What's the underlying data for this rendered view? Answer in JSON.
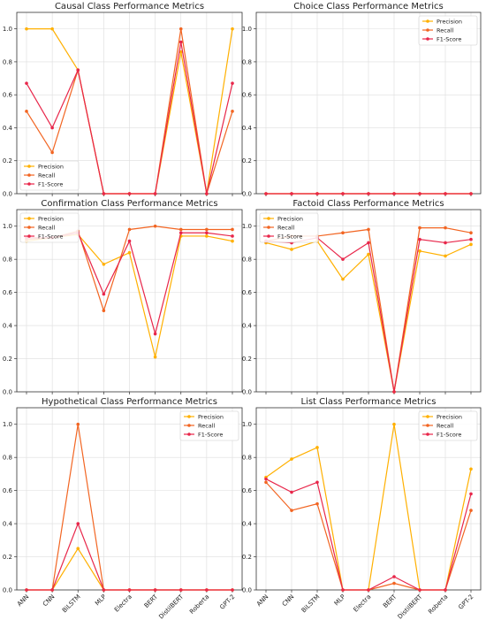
{
  "legend_labels": [
    "Precision",
    "Recall",
    "F1-Score"
  ],
  "colors": {
    "Precision": "#FFB000",
    "Recall": "#F26522",
    "F1-Score": "#E8264A",
    "axis": "#333333",
    "grid": "#dddddd"
  },
  "chart_data": [
    {
      "type": "line",
      "title": "Causal Class Performance Metrics",
      "categories": [
        "ANN",
        "CNN",
        "BiLSTM",
        "MLP",
        "Electra",
        "BERT",
        "DistilBERT",
        "Roberta",
        "GPT-2"
      ],
      "ylim": [
        0,
        1.1
      ],
      "yticks": [
        "0.0",
        "0.2",
        "0.4",
        "0.6",
        "0.8",
        "1.0"
      ],
      "grid": true,
      "legend_position": "bottom-left",
      "show_xticks": false,
      "series": [
        {
          "name": "Precision",
          "values": [
            1.0,
            1.0,
            0.75,
            0.0,
            0.0,
            0.0,
            0.86,
            0.0,
            1.0
          ]
        },
        {
          "name": "Recall",
          "values": [
            0.5,
            0.25,
            0.75,
            0.0,
            0.0,
            0.0,
            1.0,
            0.0,
            0.5
          ]
        },
        {
          "name": "F1-Score",
          "values": [
            0.67,
            0.4,
            0.75,
            0.0,
            0.0,
            0.0,
            0.92,
            0.0,
            0.67
          ]
        }
      ]
    },
    {
      "type": "line",
      "title": "Choice Class Performance Metrics",
      "categories": [
        "ANN",
        "CNN",
        "BiLSTM",
        "MLP",
        "Electra",
        "BERT",
        "DistilBERT",
        "Roberta",
        "GPT-2"
      ],
      "ylim": [
        0,
        1.1
      ],
      "yticks": [
        "0.0",
        "0.2",
        "0.4",
        "0.6",
        "0.8",
        "1.0"
      ],
      "grid": true,
      "legend_position": "top-right",
      "show_xticks": false,
      "series": [
        {
          "name": "Precision",
          "values": [
            0,
            0,
            0,
            0,
            0,
            0,
            0,
            0,
            0
          ]
        },
        {
          "name": "Recall",
          "values": [
            0,
            0,
            0,
            0,
            0,
            0,
            0,
            0,
            0
          ]
        },
        {
          "name": "F1-Score",
          "values": [
            0,
            0,
            0,
            0,
            0,
            0,
            0,
            0,
            0
          ]
        }
      ]
    },
    {
      "type": "line",
      "title": "Confirmation Class Performance Metrics",
      "categories": [
        "ANN",
        "CNN",
        "BiLSTM",
        "MLP",
        "Electra",
        "BERT",
        "DistilBERT",
        "Roberta",
        "GPT-2"
      ],
      "ylim": [
        0,
        1.1
      ],
      "yticks": [
        "0.0",
        "0.2",
        "0.4",
        "0.6",
        "0.8",
        "1.0"
      ],
      "grid": true,
      "legend_position": "top-left",
      "show_xticks": false,
      "series": [
        {
          "name": "Precision",
          "values": [
            0.91,
            0.93,
            0.95,
            0.77,
            0.84,
            0.21,
            0.94,
            0.94,
            0.91
          ]
        },
        {
          "name": "Recall",
          "values": [
            0.92,
            0.93,
            0.97,
            0.49,
            0.98,
            1.0,
            0.98,
            0.98,
            0.98
          ]
        },
        {
          "name": "F1-Score",
          "values": [
            0.93,
            0.93,
            0.96,
            0.59,
            0.91,
            0.35,
            0.96,
            0.96,
            0.94
          ]
        }
      ]
    },
    {
      "type": "line",
      "title": "Factoid Class Performance Metrics",
      "categories": [
        "ANN",
        "CNN",
        "BiLSTM",
        "MLP",
        "Electra",
        "BERT",
        "DistilBERT",
        "Roberta",
        "GPT-2"
      ],
      "ylim": [
        0,
        1.1
      ],
      "yticks": [
        "0.0",
        "0.2",
        "0.4",
        "0.6",
        "0.8",
        "1.0"
      ],
      "grid": true,
      "legend_position": "top-left",
      "show_xticks": false,
      "series": [
        {
          "name": "Precision",
          "values": [
            0.9,
            0.86,
            0.91,
            0.68,
            0.83,
            0.0,
            0.85,
            0.82,
            0.89
          ]
        },
        {
          "name": "Recall",
          "values": [
            0.91,
            0.94,
            0.94,
            0.96,
            0.98,
            0.0,
            0.99,
            0.99,
            0.96
          ]
        },
        {
          "name": "F1-Score",
          "values": [
            0.91,
            0.9,
            0.93,
            0.8,
            0.9,
            0.0,
            0.92,
            0.9,
            0.92
          ]
        }
      ]
    },
    {
      "type": "line",
      "title": "Hypothetical Class Performance Metrics",
      "categories": [
        "ANN",
        "CNN",
        "BiLSTM",
        "MLP",
        "Electra",
        "BERT",
        "DistilBERT",
        "Roberta",
        "GPT-2"
      ],
      "ylim": [
        0,
        1.1
      ],
      "yticks": [
        "0.0",
        "0.2",
        "0.4",
        "0.6",
        "0.8",
        "1.0"
      ],
      "grid": true,
      "legend_position": "top-right",
      "show_xticks": true,
      "series": [
        {
          "name": "Precision",
          "values": [
            0.0,
            0.0,
            0.25,
            0.0,
            0.0,
            0.0,
            0.0,
            0.0,
            0.0
          ]
        },
        {
          "name": "Recall",
          "values": [
            0.0,
            0.0,
            1.0,
            0.0,
            0.0,
            0.0,
            0.0,
            0.0,
            0.0
          ]
        },
        {
          "name": "F1-Score",
          "values": [
            0.0,
            0.0,
            0.4,
            0.0,
            0.0,
            0.0,
            0.0,
            0.0,
            0.0
          ]
        }
      ]
    },
    {
      "type": "line",
      "title": "List Class Performance Metrics",
      "categories": [
        "ANN",
        "CNN",
        "BiLSTM",
        "MLP",
        "Electra",
        "BERT",
        "DistilBERT",
        "Roberta",
        "GPT-2"
      ],
      "ylim": [
        0,
        1.1
      ],
      "yticks": [
        "0.0",
        "0.2",
        "0.4",
        "0.6",
        "0.8",
        "1.0"
      ],
      "grid": true,
      "legend_position": "top-right",
      "show_xticks": true,
      "series": [
        {
          "name": "Precision",
          "values": [
            0.68,
            0.79,
            0.86,
            0.0,
            0.0,
            1.0,
            0.0,
            0.0,
            0.73
          ]
        },
        {
          "name": "Recall",
          "values": [
            0.65,
            0.48,
            0.52,
            0.0,
            0.0,
            0.04,
            0.0,
            0.0,
            0.48
          ]
        },
        {
          "name": "F1-Score",
          "values": [
            0.67,
            0.59,
            0.65,
            0.0,
            0.0,
            0.08,
            0.0,
            0.0,
            0.58
          ]
        }
      ]
    }
  ]
}
